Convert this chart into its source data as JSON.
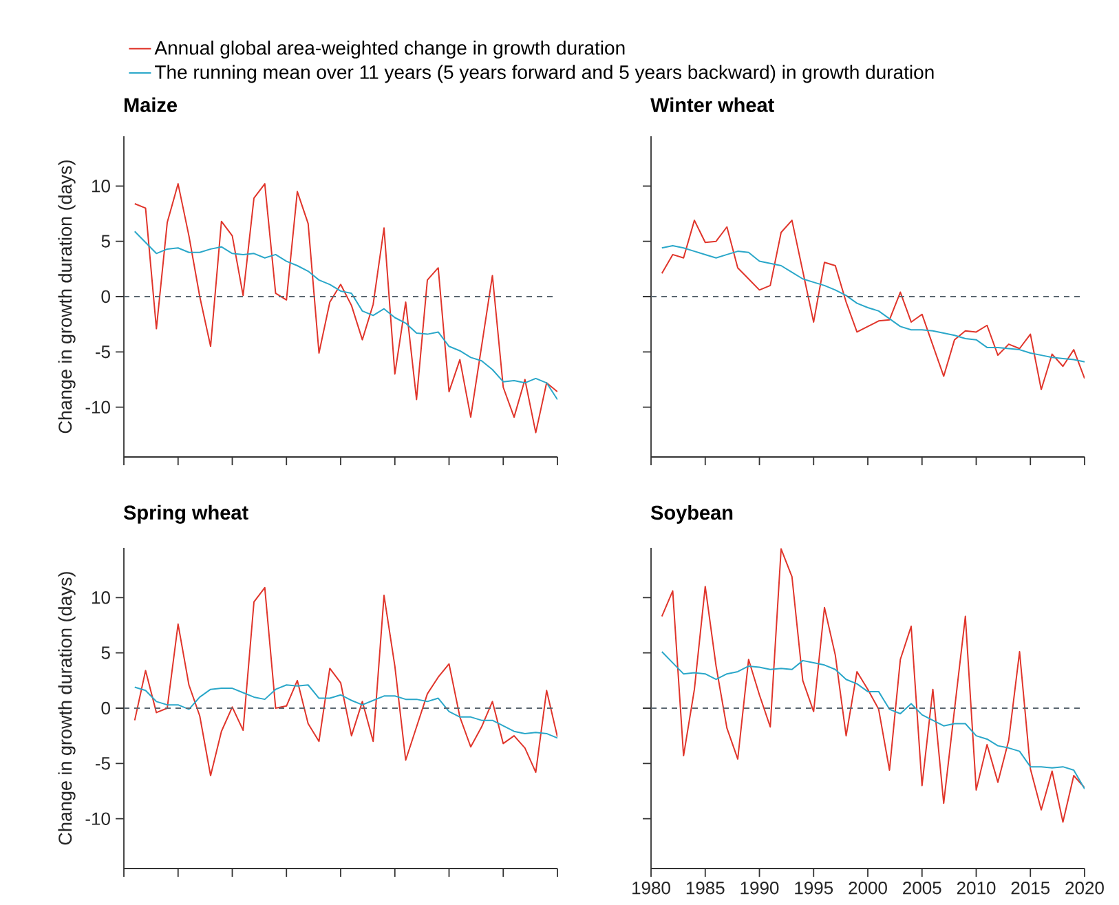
{
  "chart_data": [
    {
      "type": "line",
      "title": "Maize",
      "ylabel": "Change in growth duration (days)",
      "legend": "top",
      "tick_labels": "y",
      "categories": [
        null,
        null,
        null,
        null,
        null,
        null,
        null,
        null,
        null,
        null,
        null,
        null,
        null,
        null,
        null,
        null,
        null,
        null,
        null,
        null,
        null,
        null,
        null,
        null,
        null,
        null,
        null,
        null,
        null,
        null,
        null,
        null,
        null,
        null,
        null,
        null,
        null,
        null,
        null,
        null
      ],
      "ylim": [
        -14.5,
        14.5
      ],
      "yticks": [
        -10,
        -5,
        0,
        5,
        10
      ],
      "series": [
        {
          "name": "Annual global area-weighted change in growth duration",
          "color": "#e0352b",
          "values": [
            8.4,
            8.0,
            -2.9,
            6.7,
            10.2,
            5.5,
            0.0,
            -4.5,
            6.8,
            5.5,
            0.1,
            8.9,
            10.2,
            0.3,
            -0.3,
            9.5,
            6.6,
            -5.1,
            -0.5,
            1.1,
            -0.8,
            -3.9,
            -0.7,
            6.2,
            -7.0,
            -0.5,
            -9.3,
            1.5,
            2.6,
            -8.6,
            -5.7,
            -10.9,
            -4.5,
            1.9,
            -8.2,
            -10.9,
            -7.5,
            -12.3,
            -7.8,
            -8.6
          ]
        },
        {
          "name": "The running mean over 11 years (5 years forward and 5 years backward) in growth duration",
          "color": "#2aa7c9",
          "values": [
            5.9,
            4.9,
            3.9,
            4.3,
            4.4,
            4.0,
            4.0,
            4.3,
            4.5,
            3.9,
            3.8,
            3.9,
            3.5,
            3.8,
            3.2,
            2.8,
            2.3,
            1.5,
            1.1,
            0.5,
            0.3,
            -1.3,
            -1.7,
            -1.1,
            -1.9,
            -2.4,
            -3.3,
            -3.4,
            -3.2,
            -4.5,
            -4.9,
            -5.5,
            -5.8,
            -6.6,
            -7.7,
            -7.6,
            -7.8,
            -7.4,
            -7.8,
            -9.3
          ]
        }
      ],
      "ref_lines": [
        {
          "axis": "y",
          "value": 0,
          "line_style": "dashed",
          "color": "#5a6670"
        }
      ]
    },
    {
      "type": "line",
      "title": "Winter wheat",
      "tick_labels": false,
      "x": [
        1981,
        1982,
        1983,
        1984,
        1985,
        1986,
        1987,
        1988,
        1989,
        1990,
        1991,
        1992,
        1993,
        1994,
        1995,
        1996,
        1997,
        1998,
        1999,
        2000,
        2001,
        2002,
        2003,
        2004,
        2005,
        2006,
        2007,
        2008,
        2009,
        2010,
        2011,
        2012,
        2013,
        2014,
        2015,
        2016,
        2017,
        2018,
        2019,
        2020
      ],
      "xlim": [
        1980,
        2020
      ],
      "xticks": [
        1980,
        1985,
        1990,
        1995,
        2000,
        2005,
        2010,
        2015,
        2020
      ],
      "ylim": [
        -14.5,
        14.5
      ],
      "yticks": [
        -10,
        -5,
        0,
        5,
        10
      ],
      "series": [
        {
          "color": "#e0352b",
          "values": [
            2.1,
            3.8,
            3.5,
            6.9,
            4.9,
            5.0,
            6.3,
            2.6,
            1.6,
            0.6,
            1.0,
            5.8,
            6.9,
            2.3,
            -2.3,
            3.1,
            2.8,
            -0.5,
            -3.2,
            -2.7,
            -2.2,
            -2.1,
            0.4,
            -2.3,
            -1.6,
            -4.4,
            -7.2,
            -3.9,
            -3.1,
            -3.2,
            -2.6,
            -5.3,
            -4.3,
            -4.7,
            -3.4,
            -8.4,
            -5.2,
            -6.3,
            -4.8,
            -7.4
          ]
        },
        {
          "color": "#2aa7c9",
          "values": [
            4.4,
            4.6,
            4.4,
            4.1,
            3.8,
            3.5,
            3.8,
            4.1,
            4.0,
            3.2,
            3.0,
            2.8,
            2.2,
            1.6,
            1.3,
            1.0,
            0.6,
            0.1,
            -0.6,
            -1.0,
            -1.3,
            -2.0,
            -2.7,
            -3.0,
            -3.0,
            -3.1,
            -3.3,
            -3.5,
            -3.8,
            -3.9,
            -4.6,
            -4.6,
            -4.7,
            -4.8,
            -5.1,
            -5.3,
            -5.5,
            -5.6,
            -5.7,
            -5.9
          ]
        }
      ],
      "ref_lines": [
        {
          "axis": "y",
          "value": 0,
          "line_style": "dashed",
          "color": "#5a6670"
        }
      ]
    },
    {
      "type": "line",
      "title": "Spring wheat",
      "ylabel": "Change in growth duration (days)",
      "tick_labels": "y",
      "categories": [
        null,
        null,
        null,
        null,
        null,
        null,
        null,
        null,
        null,
        null,
        null,
        null,
        null,
        null,
        null,
        null,
        null,
        null,
        null,
        null,
        null,
        null,
        null,
        null,
        null,
        null,
        null,
        null,
        null,
        null,
        null,
        null,
        null,
        null,
        null,
        null,
        null,
        null,
        null,
        null
      ],
      "ylim": [
        -14.5,
        14.5
      ],
      "yticks": [
        -10,
        -5,
        0,
        5,
        10
      ],
      "series": [
        {
          "color": "#e0352b",
          "values": [
            -1.1,
            3.4,
            -0.4,
            0.0,
            7.6,
            2.1,
            -0.7,
            -6.1,
            -2.1,
            0.1,
            -2.0,
            9.6,
            10.9,
            0.0,
            0.2,
            2.5,
            -1.4,
            -3.0,
            3.6,
            2.3,
            -2.5,
            0.6,
            -3.0,
            10.2,
            3.8,
            -4.7,
            -1.7,
            1.3,
            2.8,
            4.0,
            -0.8,
            -3.5,
            -1.7,
            0.6,
            -3.2,
            -2.5,
            -3.6,
            -5.8,
            1.6,
            -2.6
          ]
        },
        {
          "color": "#2aa7c9",
          "values": [
            1.9,
            1.6,
            0.6,
            0.3,
            0.3,
            -0.1,
            1.0,
            1.7,
            1.8,
            1.8,
            1.4,
            1.0,
            0.8,
            1.7,
            2.1,
            2.0,
            2.1,
            0.9,
            0.9,
            1.2,
            0.7,
            0.3,
            0.7,
            1.1,
            1.1,
            0.8,
            0.8,
            0.6,
            0.9,
            -0.3,
            -0.8,
            -0.8,
            -1.1,
            -1.1,
            -1.6,
            -2.1,
            -2.3,
            -2.2,
            -2.3,
            -2.7
          ]
        }
      ],
      "ref_lines": [
        {
          "axis": "y",
          "value": 0,
          "line_style": "dashed",
          "color": "#5a6670"
        }
      ]
    },
    {
      "type": "line",
      "title": "Soybean",
      "tick_labels": "x",
      "x": [
        1981,
        1982,
        1983,
        1984,
        1985,
        1986,
        1987,
        1988,
        1989,
        1990,
        1991,
        1992,
        1993,
        1994,
        1995,
        1996,
        1997,
        1998,
        1999,
        2000,
        2001,
        2002,
        2003,
        2004,
        2005,
        2006,
        2007,
        2008,
        2009,
        2010,
        2011,
        2012,
        2013,
        2014,
        2015,
        2016,
        2017,
        2018,
        2019,
        2020
      ],
      "xlim": [
        1980,
        2020
      ],
      "xticks": [
        1980,
        1985,
        1990,
        1995,
        2000,
        2005,
        2010,
        2015,
        2020
      ],
      "ylim": [
        -14.5,
        14.5
      ],
      "yticks": [
        -10,
        -5,
        0,
        5,
        10
      ],
      "series": [
        {
          "color": "#e0352b",
          "values": [
            8.3,
            10.6,
            -4.3,
            1.7,
            11.0,
            3.8,
            -1.8,
            -4.6,
            4.4,
            1.2,
            -1.7,
            14.4,
            11.9,
            2.5,
            -0.3,
            9.1,
            4.8,
            -2.5,
            3.3,
            1.7,
            -0.1,
            -5.6,
            4.4,
            7.4,
            -7.0,
            1.7,
            -8.6,
            -0.1,
            8.3,
            -7.4,
            -3.3,
            -6.7,
            -2.9,
            5.1,
            -5.5,
            -9.2,
            -5.7,
            -10.3,
            -6.1,
            -7.2
          ]
        },
        {
          "color": "#2aa7c9",
          "values": [
            5.1,
            4.1,
            3.1,
            3.2,
            3.1,
            2.6,
            3.1,
            3.3,
            3.8,
            3.7,
            3.5,
            3.6,
            3.5,
            4.3,
            4.1,
            3.9,
            3.5,
            2.6,
            2.2,
            1.5,
            1.5,
            -0.1,
            -0.5,
            0.4,
            -0.6,
            -1.1,
            -1.6,
            -1.4,
            -1.4,
            -2.5,
            -2.8,
            -3.4,
            -3.6,
            -3.9,
            -5.3,
            -5.3,
            -5.4,
            -5.3,
            -5.6,
            -7.3
          ]
        }
      ],
      "ref_lines": [
        {
          "axis": "y",
          "value": 0,
          "line_style": "dashed",
          "color": "#5a6670"
        }
      ]
    }
  ]
}
